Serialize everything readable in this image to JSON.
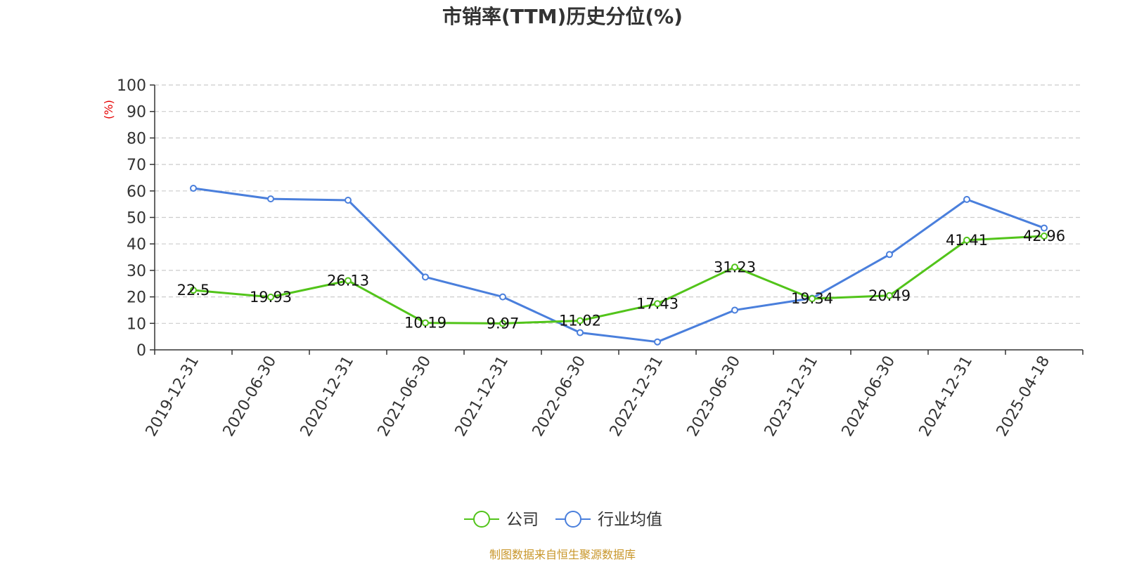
{
  "chart_data": {
    "type": "line",
    "title": "市销率(TTM)历史分位(%)",
    "ylabel": "(%)",
    "xlabel": "",
    "ylim": [
      0,
      100
    ],
    "yticks": [
      0,
      10,
      20,
      30,
      40,
      50,
      60,
      70,
      80,
      90,
      100
    ],
    "grid": true,
    "legend_position": "bottom-center",
    "categories": [
      "2019-12-31",
      "2020-06-30",
      "2020-12-31",
      "2021-06-30",
      "2021-12-31",
      "2022-06-30",
      "2022-12-31",
      "2023-06-30",
      "2023-12-31",
      "2024-06-30",
      "2024-12-31",
      "2025-04-18"
    ],
    "series": [
      {
        "name": "公司",
        "color": "#52c41a",
        "values": [
          22.5,
          19.93,
          26.13,
          10.19,
          9.97,
          11.02,
          17.43,
          31.23,
          19.34,
          20.49,
          41.41,
          42.96
        ],
        "labels": [
          "22.5",
          "19.93",
          "26.13",
          "10.19",
          "9.97",
          "11.02",
          "17.43",
          "31.23",
          "19.34",
          "20.49",
          "41.41",
          "42.96"
        ]
      },
      {
        "name": "行业均值",
        "color": "#4a7fdc",
        "values": [
          61,
          57,
          56.5,
          27.5,
          20,
          6.5,
          3,
          15,
          19.5,
          36,
          56.8,
          46
        ]
      }
    ],
    "source": "制图数据来自恒生聚源数据库"
  }
}
